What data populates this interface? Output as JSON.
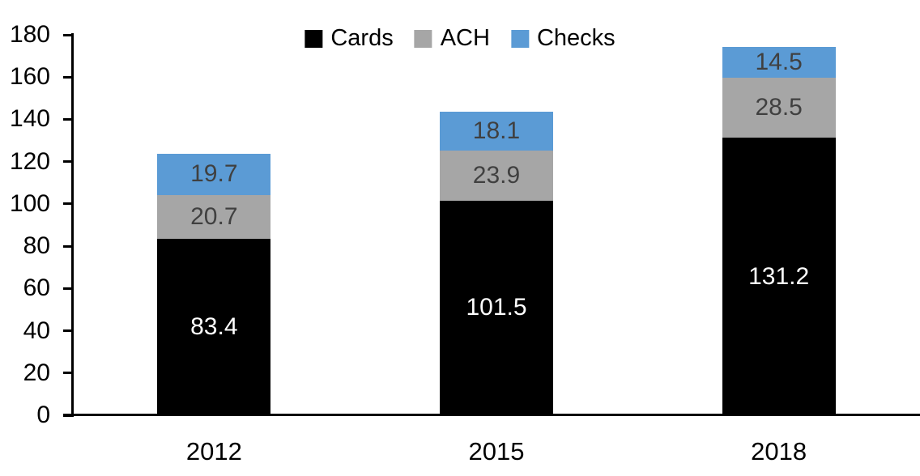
{
  "chart_data": {
    "type": "bar",
    "stacked": true,
    "categories": [
      "2012",
      "2015",
      "2018"
    ],
    "series": [
      {
        "name": "Cards",
        "color": "#000000",
        "label_color": "#ffffff",
        "values": [
          83.4,
          101.5,
          131.2
        ]
      },
      {
        "name": "ACH",
        "color": "#a6a6a6",
        "label_color": "#404040",
        "values": [
          20.7,
          23.9,
          28.5
        ]
      },
      {
        "name": "Checks",
        "color": "#5b9bd5",
        "label_color": "#404040",
        "values": [
          19.7,
          18.1,
          14.5
        ]
      }
    ],
    "ylim": [
      0,
      180
    ],
    "ytick_step": 20,
    "yticks": [
      0,
      20,
      40,
      60,
      80,
      100,
      120,
      140,
      160,
      180
    ],
    "legend_position": "top",
    "grid": false,
    "axis_color": "#000000",
    "data_labels_shown": true
  }
}
